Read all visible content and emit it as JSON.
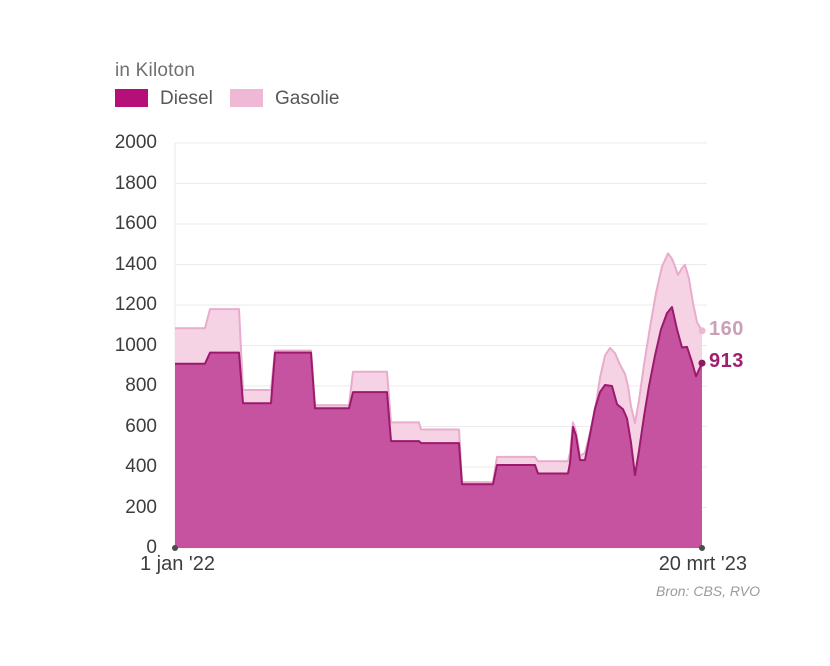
{
  "title": "in Kiloton",
  "source": "Bron: CBS, RVO",
  "legend": [
    {
      "label": "Diesel",
      "color": "#b60f7a"
    },
    {
      "label": "Gasolie",
      "color": "#efb9d5"
    }
  ],
  "x_axis": {
    "start_label": "1 jan '22",
    "end_label": "20 mrt '23"
  },
  "y_axis": {
    "min": 0,
    "max": 2000,
    "step": 200,
    "ticks": [
      0,
      200,
      400,
      600,
      800,
      1000,
      1200,
      1400,
      1600,
      1800,
      2000
    ]
  },
  "end_labels": [
    {
      "series": "Gasolie",
      "value": "160",
      "text_color": "#c9a0b8",
      "dot_color": "#edb6d2"
    },
    {
      "series": "Diesel",
      "value": "913",
      "text_color": "#a02070",
      "dot_color": "#8e1a62"
    }
  ],
  "colors": {
    "diesel_fill": "#c6539f",
    "diesel_stroke": "#9c1a6b",
    "gasolie_fill": "#f5d3e5",
    "gasolie_stroke": "#e9accc",
    "gridline": "#ebebeb",
    "plot_border": "#e8e8e8",
    "axis_dot": "#4d4d4d"
  },
  "chart_data": {
    "type": "area",
    "stacked": true,
    "title": "in Kiloton",
    "ylabel": "Kiloton",
    "ylim": [
      0,
      2000
    ],
    "x_range": [
      "1 jan '22",
      "20 mrt '23"
    ],
    "grid": "horizontal",
    "legend_position": "top-left",
    "note": "x is the fraction of the time axis between 1 jan '22 and 20 mrt '23. Diesel points are the Diesel level; Gasolie points are the stacked total (Diesel + Gasolie). End values: Diesel 913, Gasolie 160 (total 1073).",
    "series": [
      {
        "name": "Diesel",
        "end_value": 913,
        "points": [
          [
            0.0,
            910
          ],
          [
            0.0569,
            910
          ],
          [
            0.0664,
            965
          ],
          [
            0.1214,
            965
          ],
          [
            0.129,
            715
          ],
          [
            0.1822,
            715
          ],
          [
            0.1898,
            965
          ],
          [
            0.2581,
            965
          ],
          [
            0.2657,
            690
          ],
          [
            0.3302,
            690
          ],
          [
            0.3378,
            770
          ],
          [
            0.4023,
            770
          ],
          [
            0.4099,
            528
          ],
          [
            0.463,
            528
          ],
          [
            0.4668,
            518
          ],
          [
            0.5389,
            518
          ],
          [
            0.5446,
            315
          ],
          [
            0.6034,
            315
          ],
          [
            0.611,
            410
          ],
          [
            0.6831,
            410
          ],
          [
            0.6888,
            368
          ],
          [
            0.7457,
            368
          ],
          [
            0.7495,
            420
          ],
          [
            0.7552,
            598
          ],
          [
            0.7609,
            555
          ],
          [
            0.7685,
            434
          ],
          [
            0.778,
            434
          ],
          [
            0.7875,
            560
          ],
          [
            0.797,
            690
          ],
          [
            0.8065,
            770
          ],
          [
            0.816,
            805
          ],
          [
            0.8292,
            800
          ],
          [
            0.8387,
            710
          ],
          [
            0.8501,
            685
          ],
          [
            0.8577,
            640
          ],
          [
            0.8653,
            520
          ],
          [
            0.8729,
            360
          ],
          [
            0.8805,
            480
          ],
          [
            0.89,
            650
          ],
          [
            0.8995,
            800
          ],
          [
            0.9108,
            950
          ],
          [
            0.9222,
            1080
          ],
          [
            0.9336,
            1160
          ],
          [
            0.9431,
            1190
          ],
          [
            0.9526,
            1080
          ],
          [
            0.962,
            990
          ],
          [
            0.9715,
            993
          ],
          [
            0.981,
            918
          ],
          [
            0.9886,
            848
          ],
          [
            1.0,
            913
          ]
        ]
      },
      {
        "name": "Gasolie (stacked total)",
        "end_value": 160,
        "points": [
          [
            0.0,
            1085
          ],
          [
            0.0569,
            1085
          ],
          [
            0.0664,
            1180
          ],
          [
            0.1214,
            1180
          ],
          [
            0.129,
            780
          ],
          [
            0.1822,
            780
          ],
          [
            0.1898,
            975
          ],
          [
            0.2581,
            975
          ],
          [
            0.2657,
            705
          ],
          [
            0.3302,
            705
          ],
          [
            0.3378,
            870
          ],
          [
            0.4023,
            870
          ],
          [
            0.4099,
            620
          ],
          [
            0.463,
            620
          ],
          [
            0.4668,
            585
          ],
          [
            0.5389,
            585
          ],
          [
            0.5446,
            325
          ],
          [
            0.6034,
            325
          ],
          [
            0.611,
            450
          ],
          [
            0.6831,
            450
          ],
          [
            0.6888,
            428
          ],
          [
            0.7457,
            428
          ],
          [
            0.7495,
            470
          ],
          [
            0.7552,
            620
          ],
          [
            0.7609,
            575
          ],
          [
            0.7685,
            455
          ],
          [
            0.778,
            470
          ],
          [
            0.7875,
            570
          ],
          [
            0.797,
            680
          ],
          [
            0.8065,
            840
          ],
          [
            0.816,
            950
          ],
          [
            0.8254,
            988
          ],
          [
            0.8349,
            962
          ],
          [
            0.8444,
            905
          ],
          [
            0.8539,
            860
          ],
          [
            0.8596,
            800
          ],
          [
            0.8653,
            700
          ],
          [
            0.8729,
            617
          ],
          [
            0.8805,
            730
          ],
          [
            0.89,
            905
          ],
          [
            0.9014,
            1090
          ],
          [
            0.9127,
            1260
          ],
          [
            0.9241,
            1390
          ],
          [
            0.9355,
            1455
          ],
          [
            0.9431,
            1428
          ],
          [
            0.9488,
            1390
          ],
          [
            0.9545,
            1348
          ],
          [
            0.962,
            1382
          ],
          [
            0.9677,
            1398
          ],
          [
            0.9753,
            1330
          ],
          [
            0.9829,
            1210
          ],
          [
            0.9905,
            1115
          ],
          [
            1.0,
            1073
          ]
        ]
      }
    ]
  }
}
